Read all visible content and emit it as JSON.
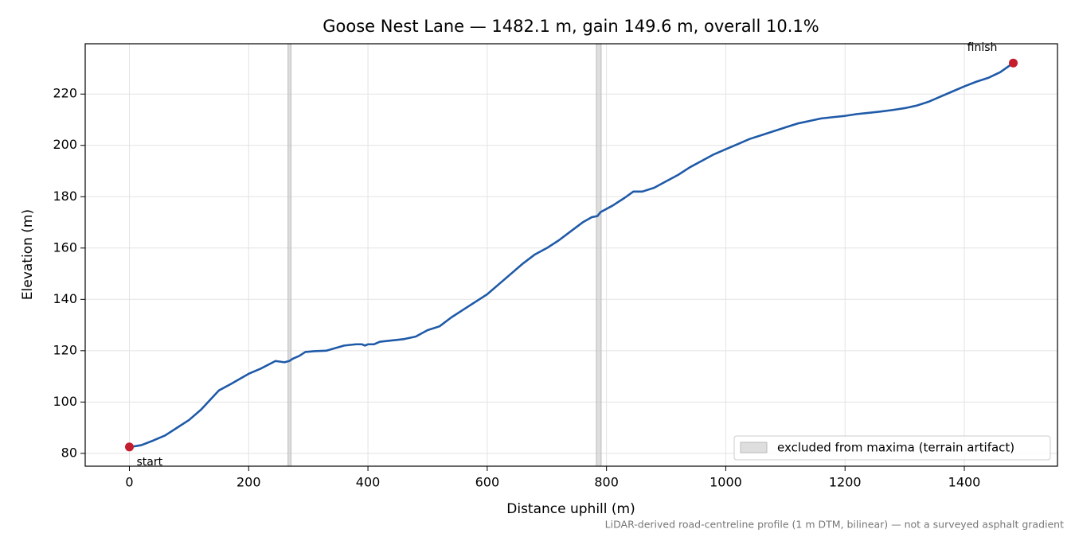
{
  "chart_data": {
    "type": "line",
    "title": "Goose Nest Lane — 1482.1 m, gain 149.6 m, overall 10.1%",
    "xlabel": "Distance uphill (m)",
    "ylabel": "Elevation (m)",
    "note": "LiDAR-derived road-centreline profile (1 m DTM, bilinear) — not a surveyed asphalt gradient",
    "x": [
      0,
      10,
      20,
      40,
      60,
      80,
      100,
      120,
      140,
      150,
      170,
      200,
      220,
      245,
      260,
      268,
      275,
      285,
      295,
      310,
      330,
      360,
      380,
      390,
      395,
      400,
      410,
      420,
      440,
      460,
      480,
      500,
      520,
      540,
      560,
      580,
      600,
      620,
      640,
      660,
      680,
      700,
      720,
      740,
      760,
      775,
      785,
      790,
      810,
      830,
      845,
      860,
      880,
      900,
      920,
      940,
      960,
      980,
      1000,
      1020,
      1040,
      1060,
      1080,
      1100,
      1120,
      1140,
      1160,
      1180,
      1200,
      1220,
      1240,
      1260,
      1280,
      1300,
      1320,
      1340,
      1360,
      1380,
      1400,
      1420,
      1440,
      1460,
      1482.1
    ],
    "values": [
      82.5,
      82.8,
      83.2,
      85,
      87,
      90,
      93,
      97,
      102,
      104.5,
      107,
      111,
      113,
      116,
      115.5,
      116,
      117,
      118,
      119.5,
      119.8,
      120,
      122,
      122.5,
      122.5,
      122,
      122.5,
      122.5,
      123.5,
      124,
      124.5,
      125.5,
      128,
      129.5,
      133,
      136,
      139,
      142,
      146,
      150,
      154,
      157.5,
      160,
      163,
      166.5,
      170,
      172,
      172.5,
      174,
      176.5,
      179.5,
      182,
      182,
      183.5,
      186,
      188.5,
      191.5,
      194,
      196.5,
      198.5,
      200.5,
      202.5,
      204,
      205.5,
      207,
      208.5,
      209.5,
      210.5,
      211,
      211.5,
      212.2,
      212.7,
      213.2,
      213.8,
      214.5,
      215.5,
      217,
      219,
      221,
      223,
      224.8,
      226.3,
      228.5,
      232.1
    ],
    "color": "#1f5aa8",
    "endpoints": [
      {
        "label": "start",
        "x": 0,
        "y": 82.5
      },
      {
        "label": "finish",
        "x": 1482.1,
        "y": 232.1
      }
    ],
    "endpoint_color": "#c41e2e",
    "excluded": {
      "label": "excluded from maxima (terrain artifact)",
      "ranges": [
        [
          266,
          271
        ],
        [
          783,
          791
        ]
      ],
      "color": "#c8c8c8"
    },
    "xlim": [
      -74.1,
      1556.2
    ],
    "ylim": [
      75.0,
      239.6
    ],
    "xticks": [
      0,
      200,
      400,
      600,
      800,
      1000,
      1200,
      1400
    ],
    "yticks": [
      80,
      100,
      120,
      140,
      160,
      180,
      200,
      220
    ],
    "grid": true,
    "legend": "lower right"
  }
}
